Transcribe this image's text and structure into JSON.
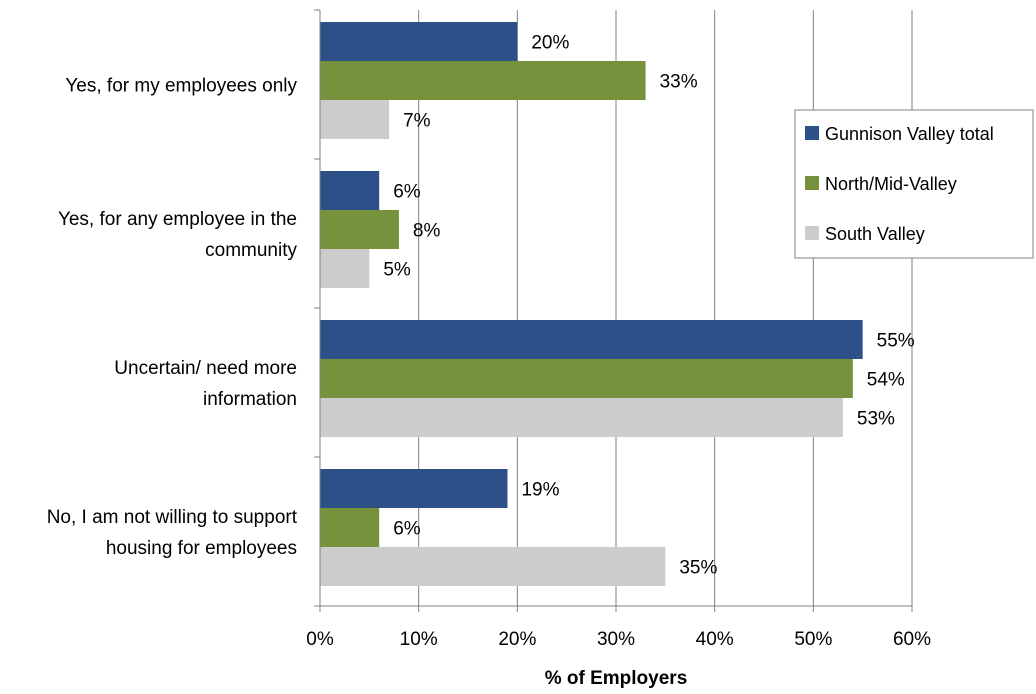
{
  "chart_data": {
    "type": "bar",
    "orientation": "horizontal",
    "categories": [
      [
        "Yes, for my employees only"
      ],
      [
        "Yes, for any employee in the",
        "community"
      ],
      [
        "Uncertain/ need more",
        "information"
      ],
      [
        "No, I am not willing to support",
        "housing for employees"
      ]
    ],
    "series": [
      {
        "name": "Gunnison Valley total",
        "color": "#2e5088",
        "values": [
          20,
          6,
          55,
          19
        ],
        "labels": [
          "20%",
          "6%",
          "55%",
          "19%"
        ]
      },
      {
        "name": "North/Mid-Valley",
        "color": "#76923c",
        "values": [
          33,
          8,
          54,
          6
        ],
        "labels": [
          "33%",
          "8%",
          "54%",
          "6%"
        ]
      },
      {
        "name": "South Valley",
        "color": "#cccccc",
        "values": [
          7,
          5,
          53,
          35
        ],
        "labels": [
          "7%",
          "5%",
          "53%",
          "35%"
        ]
      }
    ],
    "xlabel": "% of Employers",
    "xlim": [
      0,
      60
    ],
    "xticks": [
      "0%",
      "10%",
      "20%",
      "30%",
      "40%",
      "50%",
      "60%"
    ],
    "grid": "vertical",
    "legend_position": "right"
  }
}
